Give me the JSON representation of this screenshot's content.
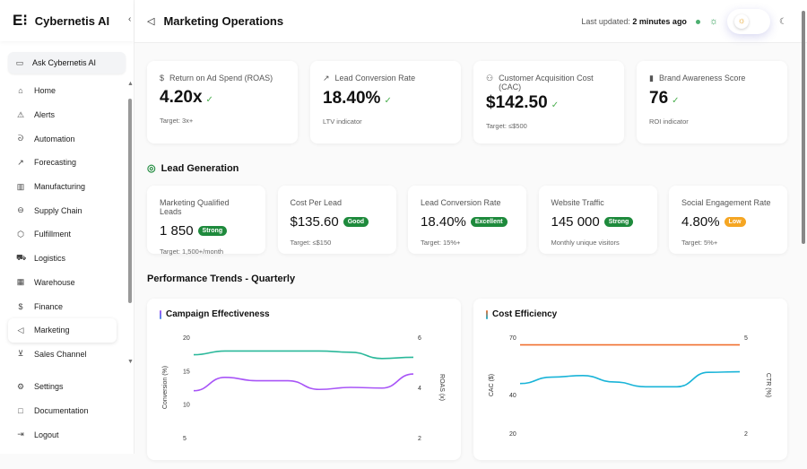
{
  "brand": "Cybernetis AI",
  "sidebar": {
    "ask": "Ask Cybernetis AI",
    "items": [
      {
        "label": "Home",
        "icon": "⌂"
      },
      {
        "label": "Alerts",
        "icon": "⚠"
      },
      {
        "label": "Automation",
        "icon": "ᘐ"
      },
      {
        "label": "Forecasting",
        "icon": "↗"
      },
      {
        "label": "Manufacturing",
        "icon": "▥"
      },
      {
        "label": "Supply Chain",
        "icon": "⊖"
      },
      {
        "label": "Fulfillment",
        "icon": "⬡"
      },
      {
        "label": "Logistics",
        "icon": "⛟"
      },
      {
        "label": "Warehouse",
        "icon": "▦"
      },
      {
        "label": "Finance",
        "icon": "$"
      },
      {
        "label": "Marketing",
        "icon": "◁"
      },
      {
        "label": "Sales Channel",
        "icon": "⊻"
      }
    ],
    "bottom": [
      {
        "label": "Settings",
        "icon": "⚙"
      },
      {
        "label": "Documentation",
        "icon": "□"
      },
      {
        "label": "Logout",
        "icon": "⇥"
      }
    ]
  },
  "header": {
    "title": "Marketing Operations",
    "updated_label": "Last updated:",
    "updated_value": "2 minutes ago"
  },
  "kpis": [
    {
      "label": "Return on Ad Spend (ROAS)",
      "icon": "$",
      "value": "4.20x",
      "sub": "Target: 3x+"
    },
    {
      "label": "Lead Conversion Rate",
      "icon": "↗",
      "value": "18.40%",
      "sub": "LTV indicator"
    },
    {
      "label": "Customer Acquisition Cost (CAC)",
      "icon": "⚇",
      "value": "$142.50",
      "sub": "Target: ≤$500"
    },
    {
      "label": "Brand Awareness Score",
      "icon": "▮",
      "value": "76",
      "sub": "ROI indicator"
    }
  ],
  "check": "✓",
  "lead_title": "Lead Generation",
  "leads": [
    {
      "label": "Marketing Qualified Leads",
      "value": "1 850",
      "badge": "Strong",
      "sub": "Target: 1,500+/month"
    },
    {
      "label": "Cost Per Lead",
      "value": "$135.60",
      "badge": "Good",
      "sub": "Target: ≤$150"
    },
    {
      "label": "Lead Conversion Rate",
      "value": "18.40%",
      "badge": "Excellent",
      "sub": "Target: 15%+"
    },
    {
      "label": "Website Traffic",
      "value": "145 000",
      "badge": "Strong",
      "sub": "Monthly unique visitors"
    },
    {
      "label": "Social Engagement Rate",
      "value": "4.80%",
      "badge": "Low",
      "sub": "Target: 5%+"
    }
  ],
  "trends_title": "Performance Trends - Quarterly",
  "chart_data": [
    {
      "type": "line",
      "title": "Campaign Effectiveness",
      "ylabel": "Conversion (%)",
      "y2label": "ROAS (x)",
      "ylim": [
        5,
        20
      ],
      "y2lim": [
        2,
        6
      ],
      "yticks": [
        20,
        15,
        10,
        5
      ],
      "y2ticks": [
        6,
        4,
        2
      ],
      "series": [
        {
          "name": "ROAS",
          "axis": "right",
          "color": "#2ab89a",
          "values": [
            5.3,
            5.45,
            5.45,
            5.45,
            5.45,
            5.4,
            5.15,
            5.2
          ]
        },
        {
          "name": "Conversion",
          "axis": "left",
          "color": "#a855f7",
          "values": [
            12,
            14,
            13.5,
            13.5,
            12.2,
            12.5,
            12.4,
            14.5
          ]
        }
      ]
    },
    {
      "type": "line",
      "title": "Cost Efficiency",
      "ylabel": "CAC ($)",
      "y2label": "CTR (%)",
      "ylim": [
        20,
        70
      ],
      "y2lim": [
        2,
        5
      ],
      "yticks": [
        70,
        40,
        20
      ],
      "y2ticks": [
        5,
        2
      ],
      "series": [
        {
          "name": "CAC",
          "axis": "left",
          "color": "#f07030",
          "values": [
            66,
            66,
            66,
            66,
            66,
            66,
            66,
            66
          ]
        },
        {
          "name": "CTR",
          "axis": "right",
          "color": "#1ab4d8",
          "values": [
            3.55,
            3.75,
            3.8,
            3.6,
            3.45,
            3.45,
            3.9,
            3.92
          ]
        }
      ]
    }
  ]
}
